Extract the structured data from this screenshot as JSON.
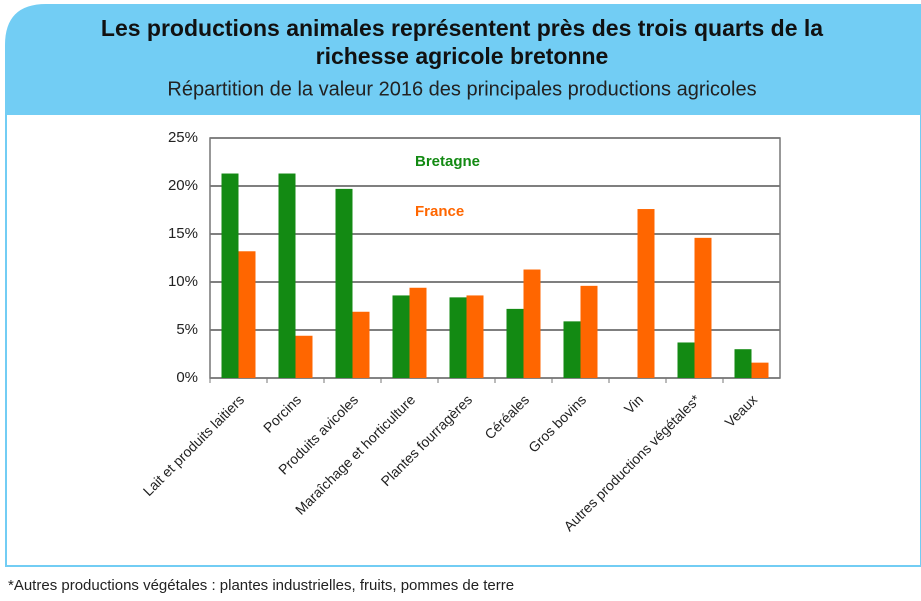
{
  "chart_data": {
    "type": "bar",
    "title": [
      "Les productions animales représentent près des trois quarts de la",
      "richesse agricole bretonne"
    ],
    "subtitle": "Répartition de la valeur 2016 des principales productions agricoles",
    "categories": [
      "Lait et produits laitiers",
      "Porcins",
      "Produits avicoles",
      "Maraîchage et horticulture",
      "Plantes fourragères",
      "Céréales",
      "Gros bovins",
      "Vin",
      "Autres productions végétales*",
      "Veaux"
    ],
    "series": [
      {
        "name": "Bretagne",
        "color": "#138a13",
        "values": [
          21.3,
          21.3,
          19.7,
          8.6,
          8.4,
          7.2,
          5.9,
          0,
          3.7,
          3.0
        ]
      },
      {
        "name": "France",
        "color": "#ff6600",
        "values": [
          13.2,
          4.4,
          6.9,
          9.4,
          8.6,
          11.3,
          9.6,
          17.6,
          14.6,
          1.6
        ]
      }
    ],
    "ylim": [
      0,
      25
    ],
    "yticks": [
      {
        "value": 0,
        "label": "0%"
      },
      {
        "value": 5,
        "label": "5%"
      },
      {
        "value": 10,
        "label": "10%"
      },
      {
        "value": 15,
        "label": "15%"
      },
      {
        "value": 20,
        "label": "20%"
      },
      {
        "value": 25,
        "label": "25%"
      }
    ],
    "grid": true,
    "footnote": "*Autres productions végétales : plantes industrielles, fruits, pommes de terre"
  }
}
